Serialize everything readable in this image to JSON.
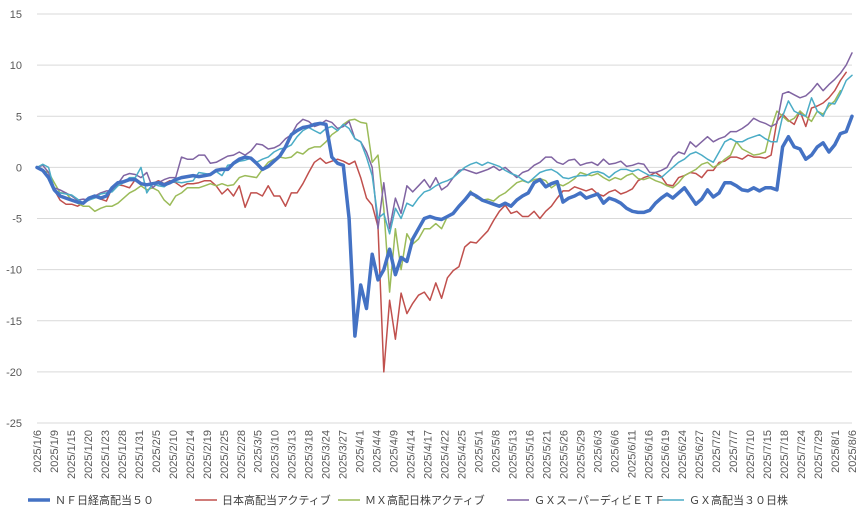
{
  "chart_data": {
    "type": "line",
    "title": "",
    "xlabel": "",
    "ylabel": "",
    "ylim": [
      -25,
      15
    ],
    "yticks": [
      15,
      10,
      5,
      0,
      -5,
      -10,
      -15,
      -20,
      -25
    ],
    "ytick_labels": [
      "15",
      "10",
      "5",
      "0",
      "-5",
      "-10",
      "-15",
      "-20",
      "-25"
    ],
    "grid": "horizontal",
    "legend_position": "bottom",
    "x_tick_labels": [
      "2025/1/6",
      "2025/1/9",
      "2025/1/15",
      "2025/1/20",
      "2025/1/23",
      "2025/1/28",
      "2025/1/31",
      "2025/2/5",
      "2025/2/10",
      "2025/2/14",
      "2025/2/19",
      "2025/2/25",
      "2025/2/28",
      "2025/3/5",
      "2025/3/10",
      "2025/3/13",
      "2025/3/18",
      "2025/3/24",
      "2025/3/27",
      "2025/4/1",
      "2025/4/4",
      "2025/4/9",
      "2025/4/14",
      "2025/4/17",
      "2025/4/22",
      "2025/4/25",
      "2025/5/1",
      "2025/5/8",
      "2025/5/13",
      "2025/5/16",
      "2025/5/21",
      "2025/5/26",
      "2025/5/29",
      "2025/6/3",
      "2025/6/6",
      "2025/6/11",
      "2025/6/16",
      "2025/6/19",
      "2025/6/24",
      "2025/6/27",
      "2025/7/2",
      "2025/7/7",
      "2025/7/10",
      "2025/7/15",
      "2025/7/18",
      "2025/7/24",
      "2025/7/29",
      "2025/8/1",
      "2025/8/6"
    ],
    "series": [
      {
        "name": "ＮＦ日経高配当５０",
        "color": "#4472C4",
        "width": 3.5,
        "values": [
          0.0,
          -0.3,
          -1.0,
          -2.2,
          -2.8,
          -3.0,
          -3.2,
          -3.4,
          -3.5,
          -3.0,
          -2.8,
          -3.0,
          -2.8,
          -2.0,
          -1.5,
          -1.4,
          -1.2,
          -1.2,
          -1.6,
          -1.7,
          -1.6,
          -1.5,
          -1.7,
          -1.5,
          -1.2,
          -1.0,
          -0.9,
          -0.8,
          -0.9,
          -0.8,
          -0.7,
          -0.3,
          -0.2,
          -0.2,
          0.4,
          0.8,
          1.0,
          0.9,
          0.4,
          -0.2,
          0.1,
          0.6,
          1.1,
          2.0,
          3.2,
          3.6,
          3.9,
          4.0,
          4.2,
          4.3,
          4.2,
          1.0,
          0.4,
          0.2,
          -5.0,
          -16.5,
          -11.5,
          -13.8,
          -8.5,
          -11.0,
          -10.0,
          -8.0,
          -10.5,
          -8.8,
          -9.2,
          -7.0,
          -6.0,
          -5.0,
          -4.8,
          -5.0,
          -5.1,
          -4.8,
          -4.5,
          -3.8,
          -3.2,
          -2.5,
          -2.8,
          -3.2,
          -3.4,
          -3.6,
          -3.8,
          -3.5,
          -3.8,
          -3.2,
          -2.8,
          -2.5,
          -1.5,
          -1.2,
          -1.9,
          -1.6,
          -1.4,
          -3.4,
          -3.0,
          -2.8,
          -2.5,
          -3.0,
          -2.8,
          -2.6,
          -3.5,
          -3.0,
          -3.2,
          -3.5,
          -4.0,
          -4.3,
          -4.4,
          -4.4,
          -4.2,
          -3.5,
          -3.0,
          -2.6,
          -3.0,
          -2.5,
          -2.0,
          -2.8,
          -3.6,
          -3.1,
          -2.2,
          -2.9,
          -2.5,
          -1.5,
          -1.5,
          -1.8,
          -2.2,
          -2.3,
          -2.0,
          -2.3,
          -2.0,
          -2.0,
          -2.2,
          2.0,
          3.0,
          2.0,
          1.8,
          0.8,
          1.2,
          2.0,
          2.4,
          1.5,
          2.2,
          3.3,
          3.5,
          5.0
        ]
      },
      {
        "name": "日本高配当アクティブ",
        "color": "#C0504D",
        "width": 1.5,
        "values": [
          0.0,
          -0.3,
          -0.8,
          -2.2,
          -3.2,
          -3.6,
          -3.6,
          -3.8,
          -3.5,
          -3.0,
          -2.8,
          -3.1,
          -3.3,
          -2.0,
          -1.7,
          -1.8,
          -2.0,
          -1.2,
          -1.6,
          -1.6,
          -1.6,
          -1.3,
          -1.6,
          -1.3,
          -1.5,
          -1.9,
          -1.6,
          -1.6,
          -1.5,
          -1.3,
          -1.3,
          -1.8,
          -2.6,
          -2.1,
          -2.8,
          -1.8,
          -3.9,
          -2.5,
          -2.5,
          -2.8,
          -1.8,
          -2.8,
          -2.8,
          -3.8,
          -2.5,
          -2.5,
          -1.6,
          -0.5,
          0.5,
          0.9,
          0.4,
          0.6,
          0.8,
          0.6,
          0.3,
          0.6,
          -1.0,
          -3.0,
          -3.7,
          -5.8,
          -20.0,
          -13.0,
          -16.8,
          -12.3,
          -14.3,
          -13.3,
          -12.5,
          -12.2,
          -13.0,
          -11.3,
          -12.8,
          -10.8,
          -10.1,
          -9.7,
          -7.8,
          -7.3,
          -7.4,
          -6.8,
          -6.2,
          -5.2,
          -4.3,
          -3.7,
          -4.5,
          -4.3,
          -4.8,
          -4.8,
          -4.3,
          -5.0,
          -4.3,
          -3.8,
          -3.0,
          -2.3,
          -2.3,
          -1.9,
          -2.1,
          -2.3,
          -2.1,
          -2.6,
          -2.8,
          -2.4,
          -2.2,
          -2.6,
          -2.4,
          -2.1,
          -1.3,
          -1.0,
          -0.8,
          -0.5,
          -0.9,
          -1.7,
          -1.8,
          -1.0,
          -0.8,
          -0.5,
          -0.6,
          -1.0,
          -0.3,
          -0.3,
          0.5,
          0.6,
          1.0,
          1.0,
          0.8,
          1.2,
          1.0,
          1.0,
          0.9,
          1.2,
          4.5,
          5.2,
          4.6,
          4.2,
          5.5,
          4.0,
          5.8,
          6.0,
          6.3,
          6.8,
          7.5,
          8.5,
          9.3
        ]
      },
      {
        "name": "ＭＸ高配日株アクティブ",
        "color": "#9BBB59",
        "width": 1.5,
        "values": [
          0.0,
          -0.3,
          -0.5,
          -1.5,
          -2.5,
          -2.5,
          -3.2,
          -3.5,
          -3.8,
          -3.8,
          -4.3,
          -4.0,
          -3.8,
          -3.8,
          -3.5,
          -3.0,
          -2.5,
          -2.2,
          -1.8,
          -2.2,
          -2.0,
          -2.3,
          -3.2,
          -3.7,
          -2.8,
          -2.5,
          -2.0,
          -2.0,
          -2.0,
          -1.8,
          -1.6,
          -1.8,
          -1.6,
          -1.8,
          -1.7,
          -1.0,
          -0.8,
          -0.9,
          -1.0,
          -0.2,
          0.5,
          0.8,
          1.0,
          0.9,
          1.0,
          1.5,
          1.3,
          1.8,
          2.0,
          2.0,
          2.5,
          3.2,
          3.6,
          4.2,
          4.6,
          4.7,
          4.4,
          4.3,
          0.5,
          1.2,
          -4.0,
          -12.2,
          -6.0,
          -10.0,
          -6.5,
          -7.5,
          -7.0,
          -6.0,
          -6.0,
          -5.5,
          -6.0,
          -4.8,
          -4.6,
          -3.8,
          -3.2,
          -2.3,
          -3.0,
          -3.2,
          -3.1,
          -3.3,
          -2.8,
          -2.5,
          -2.0,
          -1.5,
          -1.3,
          -1.5,
          -1.2,
          -1.1,
          -1.3,
          -2.0,
          -1.6,
          -1.8,
          -1.5,
          -1.1,
          -0.5,
          -0.7,
          -0.8,
          -0.6,
          -1.0,
          -1.3,
          -1.0,
          -1.2,
          -0.8,
          -0.6,
          -1.1,
          -1.2,
          -1.0,
          -1.3,
          -1.5,
          -1.8,
          -2.0,
          -1.5,
          -0.8,
          -0.5,
          -0.2,
          0.3,
          0.5,
          0.0,
          0.3,
          0.8,
          1.2,
          2.5,
          1.8,
          1.5,
          1.2,
          1.3,
          1.5,
          3.8,
          5.5,
          5.0,
          4.5,
          4.8,
          5.5,
          5.0,
          4.5,
          5.5,
          5.2,
          6.0,
          6.5,
          7.5
        ]
      },
      {
        "name": "ＧＸスーパーディビＥＴＦ",
        "color": "#8064A2",
        "width": 1.5,
        "values": [
          0.0,
          0.2,
          -0.5,
          -2.0,
          -2.2,
          -2.5,
          -2.8,
          -3.2,
          -3.1,
          -3.2,
          -2.8,
          -2.5,
          -2.3,
          -2.3,
          -1.6,
          -0.8,
          -0.6,
          -0.7,
          -1.0,
          -0.5,
          -2.0,
          -1.5,
          -1.2,
          -1.0,
          -1.0,
          1.0,
          0.8,
          0.8,
          1.2,
          1.2,
          0.4,
          0.5,
          0.8,
          1.1,
          1.2,
          1.5,
          1.2,
          1.6,
          2.3,
          2.2,
          1.8,
          1.9,
          2.2,
          2.8,
          3.2,
          4.2,
          4.7,
          4.5,
          4.0,
          4.2,
          4.6,
          4.4,
          3.8,
          4.0,
          4.5,
          2.8,
          2.5,
          1.5,
          0.0,
          -6.0,
          -1.5,
          -6.0,
          -3.0,
          -4.5,
          -1.8,
          -2.4,
          -1.8,
          -1.2,
          -2.0,
          -1.0,
          -2.2,
          -1.8,
          -1.0,
          -0.3,
          -0.2,
          -0.4,
          -0.6,
          -0.4,
          -0.2,
          0.1,
          -0.3,
          0.0,
          -0.5,
          -1.0,
          -0.5,
          -0.3,
          0.2,
          0.5,
          1.0,
          1.0,
          0.5,
          0.3,
          0.7,
          0.8,
          0.2,
          0.4,
          0.5,
          0.2,
          0.8,
          0.3,
          0.4,
          0.6,
          0.1,
          0.2,
          0.4,
          0.3,
          -0.5,
          -0.5,
          -0.3,
          0.0,
          1.0,
          1.5,
          1.3,
          2.5,
          2.0,
          2.5,
          3.0,
          2.5,
          2.8,
          3.0,
          3.5,
          3.5,
          3.8,
          4.2,
          4.8,
          4.5,
          4.3,
          4.0,
          4.3,
          7.2,
          7.4,
          7.1,
          6.8,
          7.0,
          7.5,
          8.2,
          7.5,
          8.1,
          8.6,
          9.2,
          10.0,
          11.2
        ]
      },
      {
        "name": "ＧＸ高配当３０日株",
        "color": "#4BACC6",
        "width": 1.5,
        "values": [
          0.0,
          0.3,
          0.0,
          -2.2,
          -2.5,
          -2.6,
          -2.7,
          -3.1,
          -3.5,
          -3.2,
          -3.0,
          -2.6,
          -2.5,
          -2.4,
          -1.8,
          -1.5,
          -1.0,
          -1.0,
          0.0,
          -2.5,
          -1.6,
          -1.8,
          -1.9,
          -1.5,
          -1.4,
          -1.5,
          -1.4,
          -1.3,
          -0.5,
          -0.6,
          -0.7,
          -0.4,
          -0.8,
          0.2,
          0.3,
          0.6,
          0.7,
          0.9,
          0.5,
          0.8,
          1.0,
          1.5,
          1.8,
          1.9,
          2.2,
          3.0,
          3.6,
          3.9,
          3.6,
          3.3,
          3.8,
          4.0,
          3.6,
          4.2,
          3.8,
          2.8,
          2.5,
          1.0,
          -0.8,
          -5.0,
          -4.5,
          -6.5,
          -4.0,
          -5.0,
          -3.5,
          -3.8,
          -3.0,
          -2.4,
          -2.2,
          -1.8,
          -1.5,
          -1.3,
          -1.0,
          -0.5,
          0.0,
          0.3,
          0.5,
          0.2,
          0.5,
          0.3,
          0.1,
          -0.3,
          -0.6,
          -0.8,
          -1.2,
          -1.5,
          -1.0,
          -0.5,
          -0.3,
          -0.2,
          -0.5,
          -1.0,
          -1.1,
          -0.9,
          -0.8,
          -0.8,
          -0.5,
          -0.4,
          -0.6,
          -1.0,
          -0.5,
          -0.2,
          -0.2,
          -0.4,
          -0.2,
          -0.5,
          -0.8,
          -0.8,
          -1.0,
          -0.5,
          0.0,
          0.5,
          0.8,
          1.3,
          1.5,
          1.2,
          0.8,
          0.5,
          1.5,
          2.5,
          2.8,
          2.5,
          2.5,
          2.8,
          3.0,
          3.2,
          2.8,
          2.5,
          2.5,
          5.0,
          6.5,
          5.5,
          5.2,
          5.0,
          6.8,
          5.5,
          5.0,
          6.3,
          6.2,
          7.2,
          8.5,
          9.0
        ]
      }
    ]
  }
}
